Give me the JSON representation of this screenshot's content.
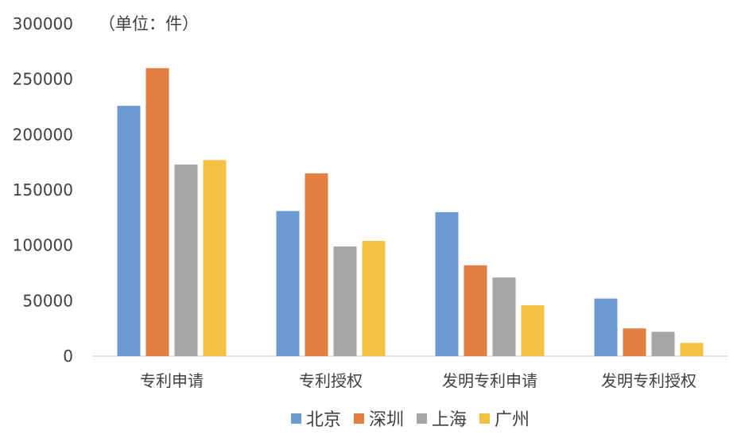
{
  "chart_data": {
    "type": "bar",
    "unit_label": "（单位：件）",
    "categories": [
      "专利申请",
      "专利授权",
      "发明专利申请",
      "发明专利授权"
    ],
    "series": [
      {
        "name": "北京",
        "color": "#6b9bd2",
        "values": [
          226000,
          131000,
          130000,
          52000
        ]
      },
      {
        "name": "深圳",
        "color": "#e07f3f",
        "values": [
          260000,
          165000,
          82000,
          25000
        ]
      },
      {
        "name": "上海",
        "color": "#a5a5a5",
        "values": [
          173000,
          99000,
          71000,
          22000
        ]
      },
      {
        "name": "广州",
        "color": "#f5c143",
        "values": [
          177000,
          104000,
          46000,
          12000
        ]
      }
    ],
    "ylim": [
      0,
      300000
    ],
    "yticks": [
      0,
      50000,
      100000,
      150000,
      200000,
      250000,
      300000
    ],
    "grid": false,
    "legend_position": "bottom"
  }
}
